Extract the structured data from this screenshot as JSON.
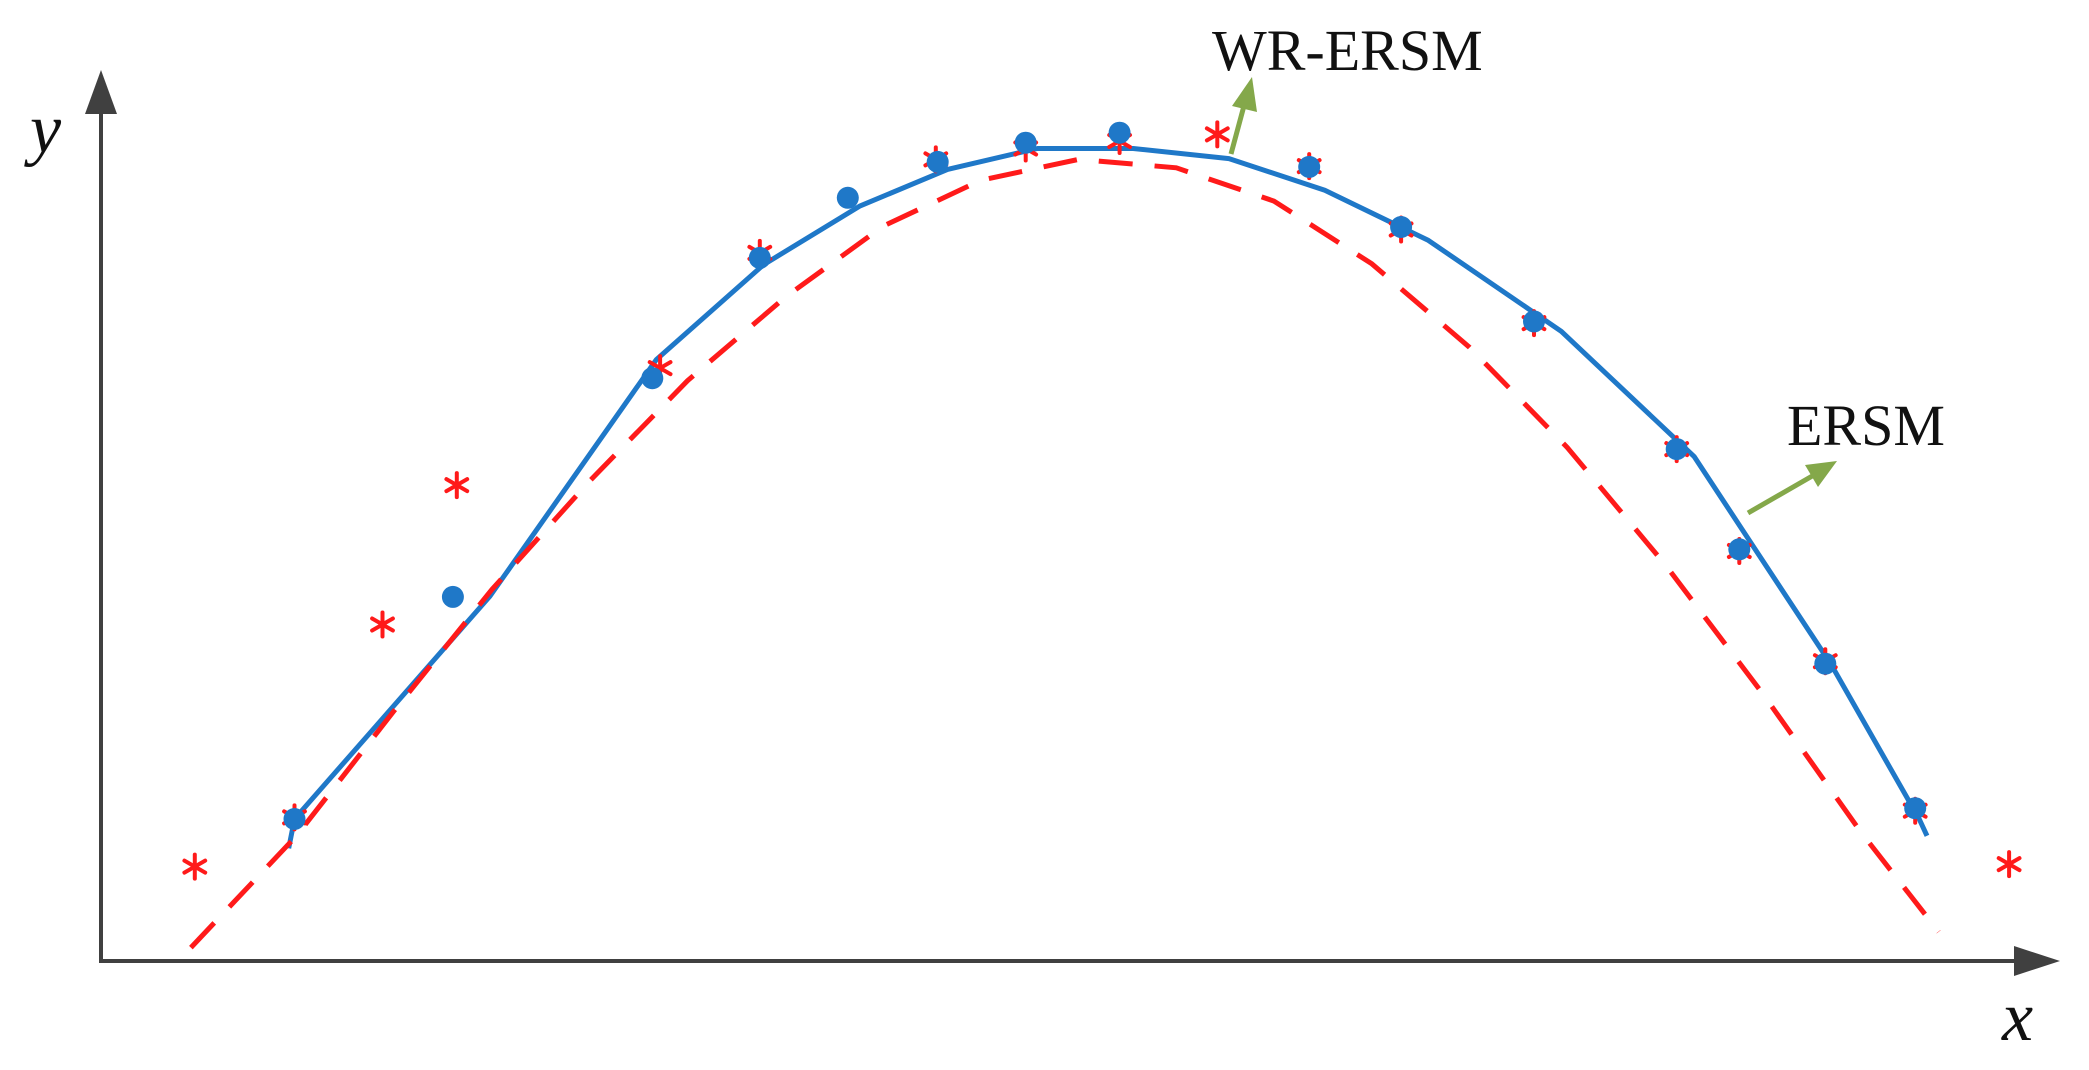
{
  "chart_data": {
    "type": "line",
    "xlabel": "x",
    "ylabel": "y",
    "xlim": [
      0,
      100
    ],
    "ylim": [
      0,
      100
    ],
    "grid": false,
    "colors": {
      "wr_ersm": "#1f78c8",
      "ersm": "#ff1a1a",
      "annotation_arrow": "#84a84a",
      "axis": "#404040"
    },
    "annotations": [
      {
        "text": "WR-ERSM",
        "target_series": "WR-ERSM"
      },
      {
        "text": "ERSM",
        "target_series": "ERSM"
      }
    ],
    "series": [
      {
        "key": "wr_ersm",
        "style": "solid-line-with-dots",
        "points": [
          [
            9.6,
            13.5
          ],
          [
            9.9,
            17.0
          ],
          [
            19.9,
            43.7
          ],
          [
            28.4,
            72.0
          ],
          [
            33.9,
            83.4
          ],
          [
            38.8,
            90.4
          ],
          [
            43.3,
            94.8
          ],
          [
            47.9,
            97.3
          ],
          [
            52.8,
            97.3
          ],
          [
            57.7,
            96.1
          ],
          [
            62.6,
            92.3
          ],
          [
            67.9,
            86.3
          ],
          [
            74.7,
            75.4
          ],
          [
            81.5,
            60.4
          ],
          [
            84.5,
            49.7
          ],
          [
            88.5,
            35.5
          ],
          [
            93.0,
            17.0
          ],
          [
            93.4,
            15.0
          ]
        ],
        "markers": [
          [
            9.9,
            17.0
          ],
          [
            18.0,
            43.6
          ],
          [
            28.2,
            69.8
          ],
          [
            33.7,
            84.2
          ],
          [
            38.2,
            91.4
          ],
          [
            42.8,
            95.7
          ],
          [
            47.3,
            98.0
          ],
          [
            52.1,
            99.2
          ],
          [
            61.8,
            95.1
          ],
          [
            66.5,
            87.9
          ],
          [
            73.3,
            76.6
          ],
          [
            80.6,
            61.3
          ],
          [
            83.8,
            49.3
          ],
          [
            88.2,
            35.6
          ],
          [
            92.8,
            18.3
          ]
        ]
      },
      {
        "key": "ersm",
        "style": "dashed-line-with-asterisks",
        "points": [
          [
            4.6,
            1.6
          ],
          [
            10.0,
            15.0
          ],
          [
            15.0,
            30.0
          ],
          [
            20.0,
            44.5
          ],
          [
            25.0,
            57.5
          ],
          [
            30.0,
            69.5
          ],
          [
            35.0,
            79.5
          ],
          [
            40.0,
            88.0
          ],
          [
            45.0,
            93.5
          ],
          [
            50.0,
            96.0
          ],
          [
            55.0,
            95.0
          ],
          [
            60.0,
            91.0
          ],
          [
            65.0,
            83.5
          ],
          [
            70.0,
            73.5
          ],
          [
            75.0,
            61.5
          ],
          [
            80.0,
            47.5
          ],
          [
            85.0,
            32.0
          ],
          [
            90.0,
            15.5
          ],
          [
            94.0,
            3.5
          ]
        ],
        "markers": [
          [
            4.8,
            11.3
          ],
          [
            9.9,
            17.2
          ],
          [
            14.4,
            40.3
          ],
          [
            18.2,
            57.0
          ],
          [
            28.6,
            71.0
          ],
          [
            33.7,
            84.8
          ],
          [
            42.7,
            96.0
          ],
          [
            47.3,
            97.3
          ],
          [
            52.1,
            98.2
          ],
          [
            57.1,
            99.0
          ],
          [
            61.8,
            95.2
          ],
          [
            66.5,
            87.6
          ],
          [
            73.3,
            76.4
          ],
          [
            80.6,
            61.3
          ],
          [
            83.8,
            49.1
          ],
          [
            88.2,
            35.9
          ],
          [
            92.8,
            18.0
          ],
          [
            97.6,
            11.6
          ]
        ]
      }
    ]
  }
}
